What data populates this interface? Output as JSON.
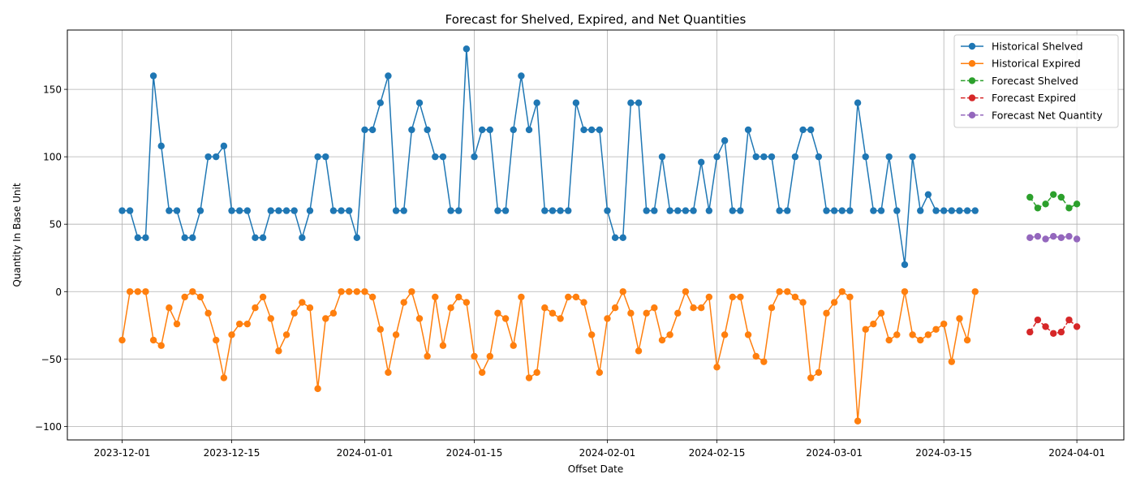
{
  "chart_data": {
    "type": "line",
    "title": "Forecast for Shelved, Expired, and Net Quantities",
    "xlabel": "Offset Date",
    "ylabel": "Quantity In Base Unit",
    "x_start": "2023-11-24",
    "x_end": "2024-04-07",
    "ylim": [
      -110,
      194
    ],
    "x_ticks": [
      {
        "date": "2023-12-01",
        "label": "2023-12-01"
      },
      {
        "date": "2023-12-15",
        "label": "2023-12-15"
      },
      {
        "date": "2024-01-01",
        "label": "2024-01-01"
      },
      {
        "date": "2024-01-15",
        "label": "2024-01-15"
      },
      {
        "date": "2024-02-01",
        "label": "2024-02-01"
      },
      {
        "date": "2024-02-15",
        "label": "2024-02-15"
      },
      {
        "date": "2024-03-01",
        "label": "2024-03-01"
      },
      {
        "date": "2024-03-15",
        "label": "2024-03-15"
      },
      {
        "date": "2024-04-01",
        "label": "2024-04-01"
      }
    ],
    "y_ticks": [
      {
        "value": -100,
        "label": "−100"
      },
      {
        "value": -50,
        "label": "−50"
      },
      {
        "value": 0,
        "label": "0"
      },
      {
        "value": 50,
        "label": "50"
      },
      {
        "value": 100,
        "label": "100"
      },
      {
        "value": 150,
        "label": "150"
      }
    ],
    "grid": true,
    "legend_position": "top-right",
    "series": [
      {
        "name": "Historical Shelved",
        "color": "#1f77b4",
        "style": "solid",
        "start_date": "2023-12-01",
        "values": [
          60,
          60,
          40,
          40,
          160,
          108,
          60,
          60,
          40,
          40,
          60,
          100,
          100,
          108,
          60,
          60,
          60,
          40,
          40,
          60,
          60,
          60,
          60,
          40,
          60,
          100,
          100,
          60,
          60,
          60,
          40,
          120,
          120,
          140,
          160,
          60,
          60,
          120,
          140,
          120,
          100,
          100,
          60,
          60,
          180,
          100,
          120,
          120,
          60,
          60,
          120,
          160,
          120,
          140,
          60,
          60,
          60,
          60,
          140,
          120,
          120,
          120,
          60,
          40,
          40,
          140,
          140,
          60,
          60,
          100,
          60,
          60,
          60,
          60,
          96,
          60,
          100,
          112,
          60,
          60,
          120,
          100,
          100,
          100,
          60,
          60,
          100,
          120,
          120,
          100,
          60,
          60,
          60,
          60,
          140,
          100,
          60,
          60,
          100,
          60,
          20,
          100,
          60,
          72,
          60,
          60,
          60,
          60,
          60,
          60
        ]
      },
      {
        "name": "Historical Expired",
        "color": "#ff7f0e",
        "style": "solid",
        "start_date": "2023-12-01",
        "values": [
          -36,
          0,
          0,
          0,
          -36,
          -40,
          -12,
          -24,
          -4,
          0,
          -4,
          -16,
          -36,
          -64,
          -32,
          -24,
          -24,
          -12,
          -4,
          -20,
          -44,
          -32,
          -16,
          -8,
          -12,
          -72,
          -20,
          -16,
          0,
          0,
          0,
          0,
          -4,
          -28,
          -60,
          -32,
          -8,
          0,
          -20,
          -48,
          -4,
          -40,
          -12,
          -4,
          -8,
          -48,
          -60,
          -48,
          -16,
          -20,
          -40,
          -4,
          -64,
          -60,
          -12,
          -16,
          -20,
          -4,
          -4,
          -8,
          -32,
          -60,
          -20,
          -12,
          0,
          -16,
          -44,
          -16,
          -12,
          -36,
          -32,
          -16,
          0,
          -12,
          -12,
          -4,
          -56,
          -32,
          -4,
          -4,
          -32,
          -48,
          -52,
          -12,
          0,
          0,
          -4,
          -8,
          -64,
          -60,
          -16,
          -8,
          0,
          -4,
          -96,
          -28,
          -24,
          -16,
          -36,
          -32,
          0,
          -32,
          -36,
          -32,
          -28,
          -24,
          -52,
          -20,
          -36,
          0
        ]
      },
      {
        "name": "Forecast Shelved",
        "color": "#2ca02c",
        "style": "dashed",
        "start_date": "2024-03-26",
        "values": [
          70,
          62,
          65,
          72,
          70,
          62,
          65
        ]
      },
      {
        "name": "Forecast Expired",
        "color": "#d62728",
        "style": "dashed",
        "start_date": "2024-03-26",
        "values": [
          -30,
          -21,
          -26,
          -31,
          -30,
          -21,
          -26
        ]
      },
      {
        "name": "Forecast Net Quantity",
        "color": "#9467bd",
        "style": "dashed",
        "start_date": "2024-03-26",
        "values": [
          40,
          41,
          39,
          41,
          40,
          41,
          39
        ]
      }
    ]
  }
}
